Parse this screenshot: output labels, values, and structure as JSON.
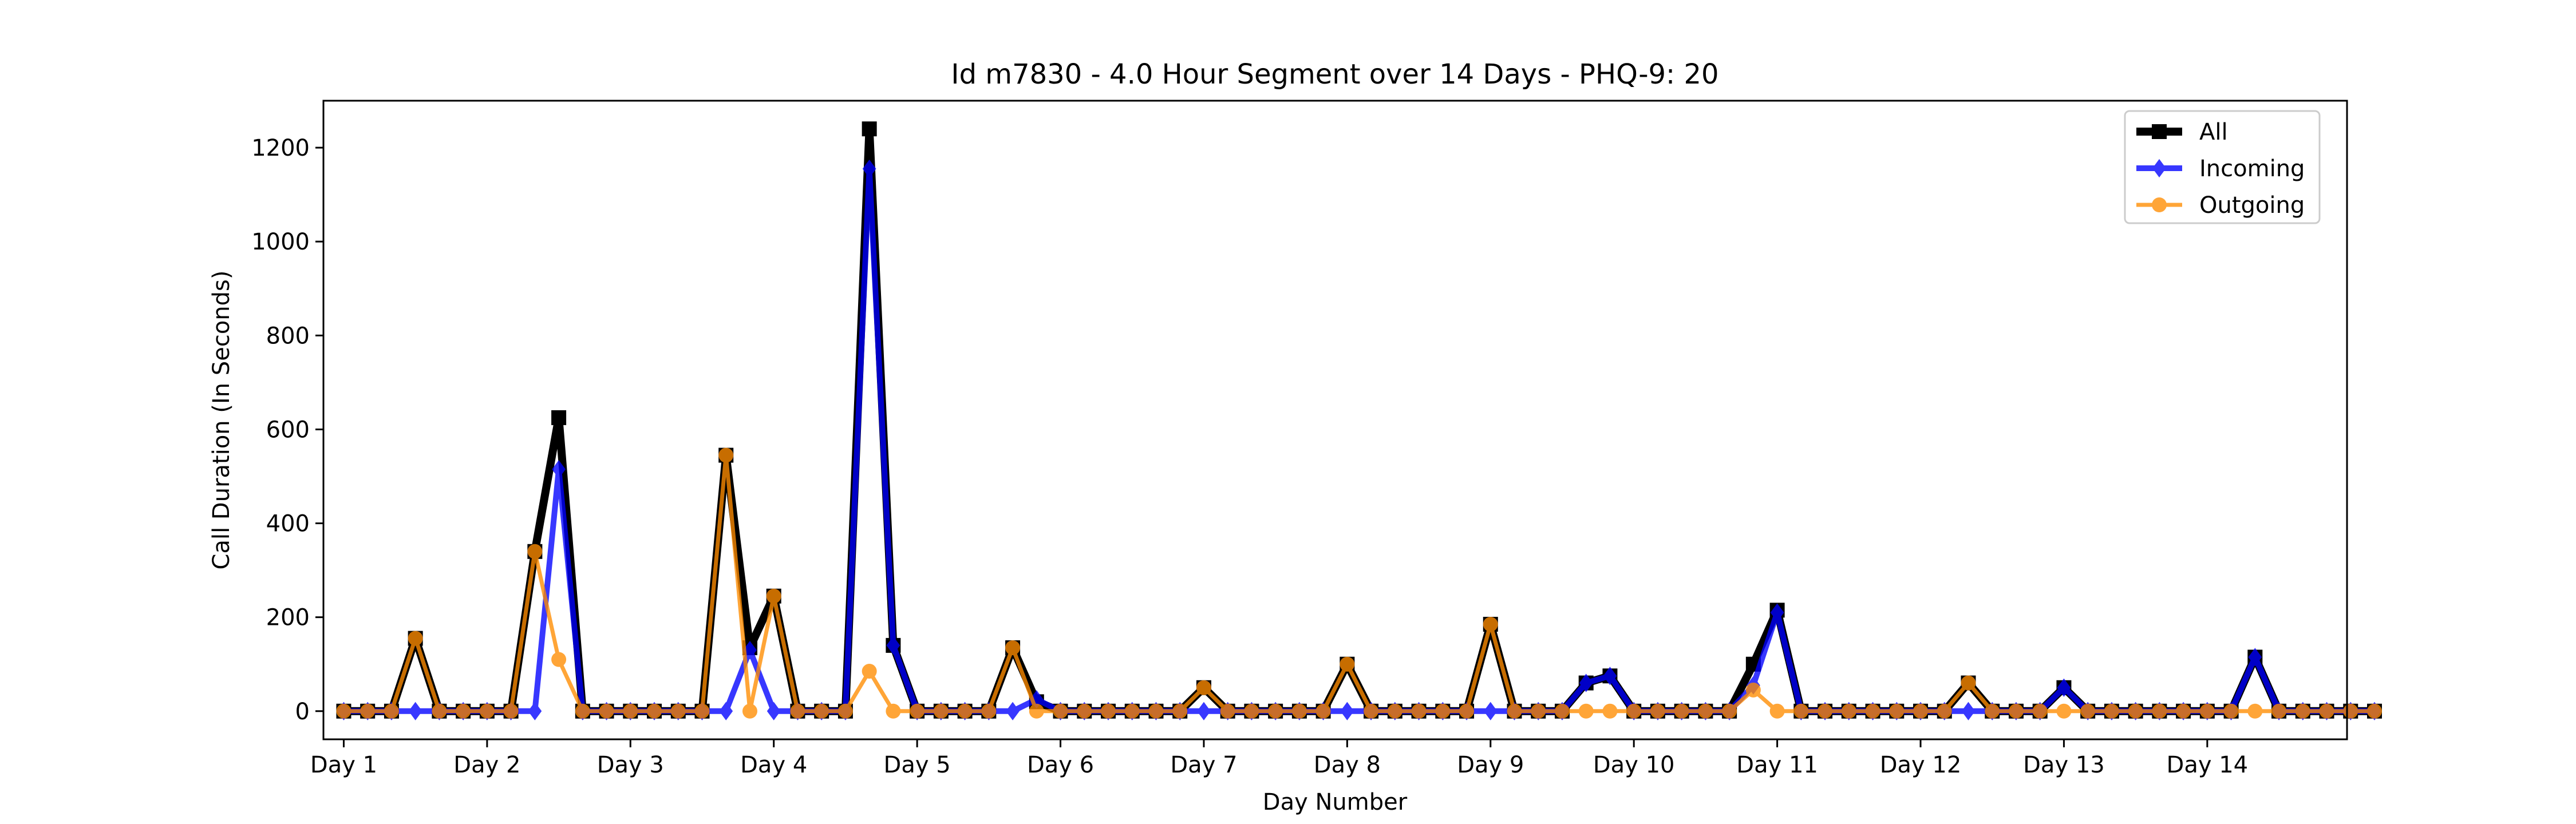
{
  "chart_data": {
    "type": "line",
    "title": "Id m7830 - 4.0 Hour Segment over 14 Days - PHQ-9: 20",
    "xlabel": "Day Number",
    "ylabel": "Call Duration (In Seconds)",
    "ylim": [
      -60,
      1300
    ],
    "yticks": [
      0,
      200,
      400,
      600,
      800,
      1000,
      1200
    ],
    "xlim": [
      -0.85,
      83.85
    ],
    "xticks": [
      0,
      6,
      12,
      18,
      24,
      30,
      36,
      42,
      48,
      54,
      60,
      66,
      72,
      78
    ],
    "xtick_labels": [
      "Day 1",
      "Day 2",
      "Day 3",
      "Day 4",
      "Day 5",
      "Day 6",
      "Day 7",
      "Day 8",
      "Day 9",
      "Day 10",
      "Day 11",
      "Day 12",
      "Day 13",
      "Day 14"
    ],
    "grid": false,
    "legend_position": "top-right",
    "series": [
      {
        "name": "All",
        "color": "#000000",
        "marker": "square",
        "values": [
          0,
          0,
          0,
          155,
          0,
          0,
          0,
          0,
          340,
          625,
          0,
          0,
          0,
          0,
          0,
          0,
          545,
          135,
          245,
          0,
          0,
          0,
          1240,
          140,
          0,
          0,
          0,
          0,
          135,
          20,
          0,
          0,
          0,
          0,
          0,
          0,
          50,
          0,
          0,
          0,
          0,
          0,
          100,
          0,
          0,
          0,
          0,
          0,
          185,
          0,
          0,
          0,
          60,
          75,
          0,
          0,
          0,
          0,
          0,
          100,
          215,
          0,
          0,
          0,
          0,
          0,
          0,
          0,
          60,
          0,
          0,
          0,
          50,
          0,
          0,
          0,
          0,
          0,
          0,
          0,
          115,
          0,
          0,
          0,
          0,
          0
        ]
      },
      {
        "name": "Incoming",
        "color": "#0000ff",
        "marker": "diamond",
        "values": [
          0,
          0,
          0,
          0,
          0,
          0,
          0,
          0,
          0,
          515,
          0,
          0,
          0,
          0,
          0,
          0,
          0,
          130,
          0,
          0,
          0,
          0,
          1155,
          140,
          0,
          0,
          0,
          0,
          0,
          25,
          0,
          0,
          0,
          0,
          0,
          0,
          0,
          0,
          0,
          0,
          0,
          0,
          0,
          0,
          0,
          0,
          0,
          0,
          0,
          0,
          0,
          0,
          60,
          75,
          0,
          0,
          0,
          0,
          0,
          55,
          210,
          0,
          0,
          0,
          0,
          0,
          0,
          0,
          0,
          0,
          0,
          0,
          50,
          0,
          0,
          0,
          0,
          0,
          0,
          0,
          115,
          0,
          0,
          0,
          0,
          0
        ]
      },
      {
        "name": "Outgoing",
        "color": "#ff8c00",
        "marker": "circle",
        "values": [
          0,
          0,
          0,
          155,
          0,
          0,
          0,
          0,
          340,
          110,
          0,
          0,
          0,
          0,
          0,
          0,
          545,
          0,
          245,
          0,
          0,
          0,
          85,
          0,
          0,
          0,
          0,
          0,
          135,
          0,
          0,
          0,
          0,
          0,
          0,
          0,
          50,
          0,
          0,
          0,
          0,
          0,
          100,
          0,
          0,
          0,
          0,
          0,
          185,
          0,
          0,
          0,
          0,
          0,
          0,
          0,
          0,
          0,
          0,
          45,
          0,
          0,
          0,
          0,
          0,
          0,
          0,
          0,
          60,
          0,
          0,
          0,
          0,
          0,
          0,
          0,
          0,
          0,
          0,
          0,
          0,
          0,
          0,
          0,
          0,
          0
        ]
      }
    ]
  }
}
